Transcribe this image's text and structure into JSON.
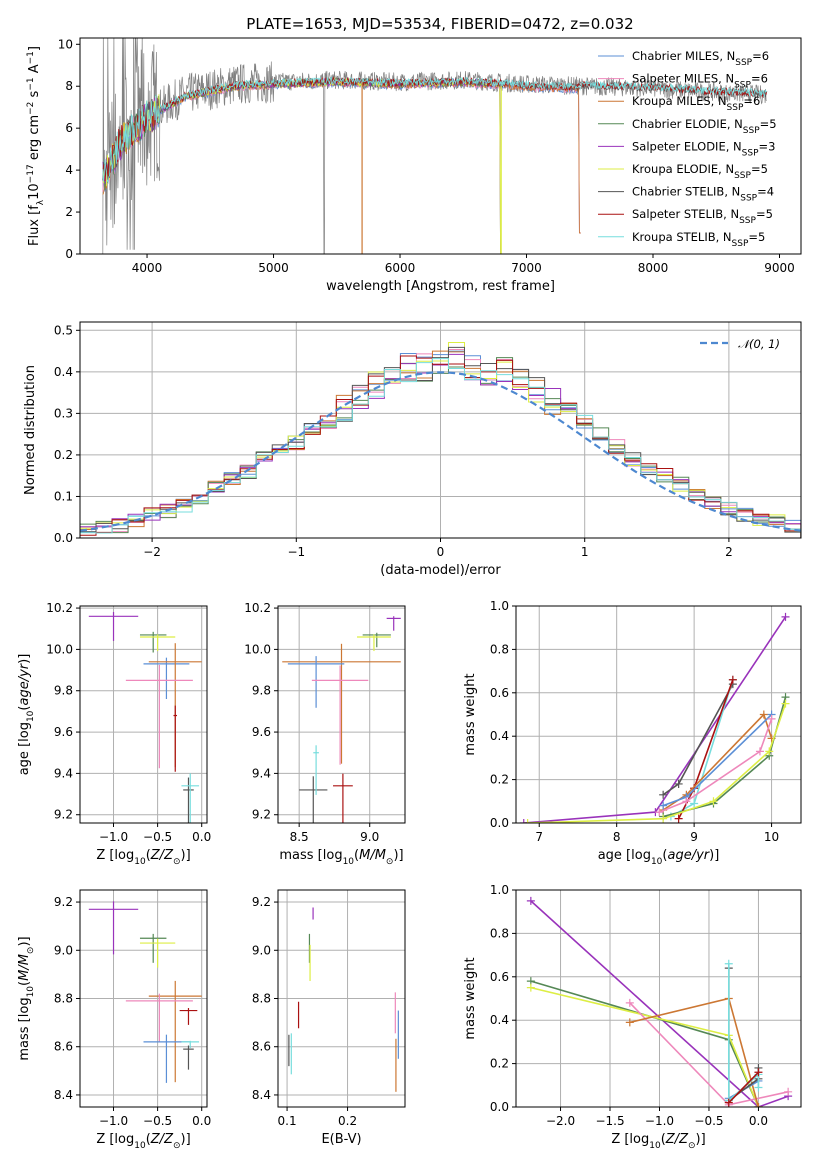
{
  "figure_title": "PLATE=1653, MJD=53534, FIBERID=0472, z=0.032",
  "colors": {
    "Chabrier MILES": "#5b8fd6",
    "Salpeter MILES": "#ee88bb",
    "Kroupa MILES": "#cc7733",
    "Chabrier ELODIE": "#558855",
    "Salpeter ELODIE": "#9933bb",
    "Kroupa ELODIE": "#ddee44",
    "Chabrier STELIB": "#555555",
    "Salpeter STELIB": "#aa1111",
    "Kroupa STELIB": "#77dddd",
    "observed": "#808080",
    "normal": "#4d88d0"
  },
  "chart_data": [
    {
      "id": "spectrum",
      "type": "line",
      "title": "PLATE=1653, MJD=53534, FIBERID=0472, z=0.032",
      "xlabel": "wavelength [Angstrom, rest frame]",
      "ylabel": "Flux [f_λ 10^-17 erg cm^-2 s^-1 A^-1]",
      "xlim": [
        3470,
        9170
      ],
      "ylim": [
        0,
        10.3
      ],
      "xticks": [
        4000,
        5000,
        6000,
        7000,
        8000,
        9000
      ],
      "yticks": [
        0,
        2,
        4,
        6,
        8,
        10
      ],
      "grid": false,
      "legend_position": "top-right",
      "legend": [
        {
          "label": "Chabrier MILES, N",
          "sub": "SSP",
          "tail": "=6"
        },
        {
          "label": "Salpeter MILES, N",
          "sub": "SSP",
          "tail": "=6"
        },
        {
          "label": "Kroupa MILES, N",
          "sub": "SSP",
          "tail": "=6"
        },
        {
          "label": "Chabrier ELODIE, N",
          "sub": "SSP",
          "tail": "=5"
        },
        {
          "label": "Salpeter ELODIE, N",
          "sub": "SSP",
          "tail": "=3"
        },
        {
          "label": "Kroupa ELODIE, N",
          "sub": "SSP",
          "tail": "=5"
        },
        {
          "label": "Chabrier STELIB, N",
          "sub": "SSP",
          "tail": "=4"
        },
        {
          "label": "Salpeter STELIB, N",
          "sub": "SSP",
          "tail": "=5"
        },
        {
          "label": "Kroupa STELIB, N",
          "sub": "SSP",
          "tail": "=5"
        }
      ],
      "observed_envelope": [
        [
          3650,
          3.0
        ],
        [
          3800,
          5.5
        ],
        [
          4000,
          6.6
        ],
        [
          4300,
          7.6
        ],
        [
          4700,
          8.1
        ],
        [
          5000,
          8.2
        ],
        [
          5500,
          8.3
        ],
        [
          6000,
          8.2
        ],
        [
          6500,
          8.3
        ],
        [
          7000,
          8.1
        ],
        [
          7500,
          8.0
        ],
        [
          8000,
          7.9
        ],
        [
          8500,
          7.7
        ],
        [
          8900,
          7.6
        ]
      ],
      "model_envelope": [
        [
          3650,
          3.6
        ],
        [
          3800,
          5.4
        ],
        [
          4000,
          6.5
        ],
        [
          4300,
          7.5
        ],
        [
          4700,
          8.0
        ],
        [
          5000,
          8.1
        ],
        [
          5500,
          8.2
        ],
        [
          6000,
          8.1
        ],
        [
          6500,
          8.2
        ],
        [
          7000,
          8.0
        ],
        [
          7430,
          7.9
        ]
      ]
    },
    {
      "id": "residuals",
      "type": "histogram",
      "xlabel": "(data-model)/error",
      "ylabel": "Normed distribution",
      "xlim": [
        -2.5,
        2.5
      ],
      "ylim": [
        0,
        0.52
      ],
      "xticks": [
        -2,
        -1,
        0,
        1,
        2
      ],
      "yticks": [
        0.0,
        0.1,
        0.2,
        0.3,
        0.4,
        0.5
      ],
      "grid": true,
      "legend_position": "top-right",
      "legend_label": "N(0,1)",
      "bin_width": 0.1111,
      "bin_start": -2.5,
      "bin_counts_approx": [
        0.02,
        0.025,
        0.03,
        0.04,
        0.055,
        0.065,
        0.08,
        0.1,
        0.12,
        0.14,
        0.16,
        0.19,
        0.21,
        0.23,
        0.26,
        0.28,
        0.31,
        0.34,
        0.37,
        0.38,
        0.41,
        0.41,
        0.42,
        0.44,
        0.41,
        0.39,
        0.4,
        0.38,
        0.36,
        0.33,
        0.31,
        0.28,
        0.25,
        0.22,
        0.19,
        0.17,
        0.15,
        0.13,
        0.1,
        0.085,
        0.07,
        0.055,
        0.045,
        0.04,
        0.03
      ]
    },
    {
      "id": "age_vs_Z",
      "type": "errorbar",
      "xlabel": "Z [log10(Z/Z_sun)]",
      "ylabel": "age [log10(age/yr)]",
      "xlim": [
        -1.38,
        0.06
      ],
      "ylim": [
        9.16,
        10.21
      ],
      "xticks": [
        -1.0,
        -0.5,
        0.0
      ],
      "yticks": [
        9.2,
        9.4,
        9.6,
        9.8,
        10.0,
        10.2
      ],
      "grid": true,
      "points": [
        {
          "s": "Salpeter ELODIE",
          "x": -1.0,
          "xe": 0.28,
          "y": 10.16,
          "ye": 0.14
        },
        {
          "s": "Chabrier ELODIE",
          "x": -0.55,
          "xe": 0.15,
          "y": 10.07,
          "ye": 0.1
        },
        {
          "s": "Kroupa ELODIE",
          "x": -0.5,
          "xe": 0.2,
          "y": 10.06,
          "ye": 0.08
        },
        {
          "s": "Chabrier MILES",
          "x": -0.4,
          "xe": 0.26,
          "y": 9.93,
          "ye": 0.2
        },
        {
          "s": "Kroupa MILES",
          "x": -0.3,
          "xe": 0.3,
          "y": 9.94,
          "ye": 0.6
        },
        {
          "s": "Salpeter MILES",
          "x": -0.48,
          "xe": 0.38,
          "y": 9.85,
          "ye": 0.5
        },
        {
          "s": "Salpeter STELIB",
          "x": -0.3,
          "xe": 0.02,
          "y": 9.68,
          "ye": 0.32
        },
        {
          "s": "Chabrier STELIB",
          "x": -0.15,
          "xe": 0.06,
          "y": 9.32,
          "ye": 0.4
        },
        {
          "s": "Kroupa STELIB",
          "x": -0.13,
          "xe": 0.1,
          "y": 9.34,
          "ye": 0.4
        }
      ]
    },
    {
      "id": "age_vs_mass",
      "type": "errorbar",
      "xlabel": "mass [log10(M/M_sun)]",
      "ylabel": "",
      "xlim": [
        8.35,
        9.25
      ],
      "ylim": [
        9.16,
        10.21
      ],
      "xticks": [
        8.5,
        9.0
      ],
      "yticks": [
        9.2,
        9.4,
        9.6,
        9.8,
        10.0,
        10.2
      ],
      "grid": true,
      "points": [
        {
          "s": "Salpeter ELODIE",
          "x": 9.17,
          "xe": 0.05,
          "y": 10.15,
          "ye": 0.07
        },
        {
          "s": "Chabrier ELODIE",
          "x": 9.05,
          "xe": 0.1,
          "y": 10.07,
          "ye": 0.07
        },
        {
          "s": "Kroupa ELODIE",
          "x": 9.03,
          "xe": 0.12,
          "y": 10.06,
          "ye": 0.08
        },
        {
          "s": "Kroupa MILES",
          "x": 8.8,
          "xe": 0.42,
          "y": 9.94,
          "ye": 0.58
        },
        {
          "s": "Chabrier MILES",
          "x": 8.62,
          "xe": 0.2,
          "y": 9.93,
          "ye": 0.25
        },
        {
          "s": "Salpeter MILES",
          "x": 8.79,
          "xe": 0.2,
          "y": 9.85,
          "ye": 0.48
        },
        {
          "s": "Salpeter STELIB",
          "x": 8.81,
          "xe": 0.07,
          "y": 9.34,
          "ye": 0.39
        },
        {
          "s": "Chabrier STELIB",
          "x": 8.6,
          "xe": 0.1,
          "y": 9.32,
          "ye": 0.44
        },
        {
          "s": "Kroupa STELIB",
          "x": 8.62,
          "xe": 0.02,
          "y": 9.5,
          "ye": 0.24
        }
      ]
    },
    {
      "id": "weight_vs_age",
      "type": "line",
      "xlabel": "age [log10(age/yr)]",
      "ylabel": "mass weight",
      "xlim": [
        6.7,
        10.38
      ],
      "ylim": [
        0,
        1.0
      ],
      "xticks": [
        7,
        8,
        9,
        10
      ],
      "yticks": [
        0.0,
        0.2,
        0.4,
        0.6,
        0.8,
        1.0
      ],
      "grid": true,
      "series": [
        {
          "s": "Salpeter ELODIE",
          "x": [
            6.8,
            8.5,
            10.18
          ],
          "y": [
            0.0,
            0.05,
            0.95
          ]
        },
        {
          "s": "Chabrier STELIB",
          "x": [
            8.6,
            8.8,
            9.5
          ],
          "y": [
            0.13,
            0.18,
            0.64
          ]
        },
        {
          "s": "Kroupa STELIB",
          "x": [
            8.7,
            9.0,
            9.5
          ],
          "y": [
            0.03,
            0.09,
            0.66
          ]
        },
        {
          "s": "Salpeter STELIB",
          "x": [
            8.8,
            9.0,
            9.5
          ],
          "y": [
            0.02,
            0.16,
            0.66
          ]
        },
        {
          "s": "Kroupa MILES",
          "x": [
            8.6,
            8.9,
            9.9,
            10.0
          ],
          "y": [
            0.06,
            0.13,
            0.5,
            0.39
          ]
        },
        {
          "s": "Chabrier MILES",
          "x": [
            8.6,
            8.9,
            10.0
          ],
          "y": [
            0.08,
            0.12,
            0.5
          ]
        },
        {
          "s": "Salpeter MILES",
          "x": [
            8.55,
            8.9,
            9.85,
            10.0
          ],
          "y": [
            0.05,
            0.1,
            0.33,
            0.48
          ]
        },
        {
          "s": "Chabrier ELODIE",
          "x": [
            8.6,
            9.25,
            9.97,
            10.18
          ],
          "y": [
            0.03,
            0.09,
            0.31,
            0.58
          ]
        },
        {
          "s": "Kroupa ELODIE",
          "x": [
            6.85,
            8.6,
            9.25,
            9.97,
            10.18
          ],
          "y": [
            0.0,
            0.02,
            0.1,
            0.33,
            0.55
          ]
        }
      ]
    },
    {
      "id": "mass_vs_Z",
      "type": "errorbar",
      "xlabel": "Z [log10(Z/Z_sun)]",
      "ylabel": "mass [log10(M/M_sun)]",
      "xlim": [
        -1.38,
        0.06
      ],
      "ylim": [
        8.35,
        9.25
      ],
      "xticks": [
        -1.0,
        -0.5,
        0.0
      ],
      "yticks": [
        8.4,
        8.6,
        8.8,
        9.0,
        9.2
      ],
      "grid": true,
      "points": [
        {
          "s": "Salpeter ELODIE",
          "x": -1.0,
          "xe": 0.28,
          "y": 9.17,
          "ye": 0.22
        },
        {
          "s": "Chabrier ELODIE",
          "x": -0.55,
          "xe": 0.15,
          "y": 9.05,
          "ye": 0.12
        },
        {
          "s": "Kroupa ELODIE",
          "x": -0.5,
          "xe": 0.2,
          "y": 9.03,
          "ye": 0.12
        },
        {
          "s": "Kroupa MILES",
          "x": -0.3,
          "xe": 0.3,
          "y": 8.81,
          "ye": 0.42
        },
        {
          "s": "Salpeter MILES",
          "x": -0.48,
          "xe": 0.38,
          "y": 8.79,
          "ye": 0.2
        },
        {
          "s": "Chabrier MILES",
          "x": -0.4,
          "xe": 0.26,
          "y": 8.62,
          "ye": 0.2
        },
        {
          "s": "Salpeter STELIB",
          "x": -0.15,
          "xe": 0.1,
          "y": 8.75,
          "ye": 0.07
        },
        {
          "s": "Chabrier STELIB",
          "x": -0.15,
          "xe": 0.06,
          "y": 8.59,
          "ye": 0.1
        },
        {
          "s": "Kroupa STELIB",
          "x": -0.13,
          "xe": 0.1,
          "y": 8.62,
          "ye": 0.03
        }
      ]
    },
    {
      "id": "mass_vs_EBV",
      "type": "errorbar",
      "xlabel": "E(B-V)",
      "ylabel": "",
      "xlim": [
        0.085,
        0.295
      ],
      "ylim": [
        8.35,
        9.25
      ],
      "xticks": [
        0.1,
        0.2
      ],
      "yticks": [
        8.4,
        8.6,
        8.8,
        9.0,
        9.2
      ],
      "grid": true,
      "points": [
        {
          "s": "Salpeter ELODIE",
          "x": 0.143,
          "y": 9.17,
          "ye": 0.05
        },
        {
          "s": "Chabrier ELODIE",
          "x": 0.137,
          "y": 9.05,
          "ye": 0.12
        },
        {
          "s": "Kroupa ELODIE",
          "x": 0.138,
          "y": 9.0,
          "ye": 0.15
        },
        {
          "s": "Salpeter STELIB",
          "x": 0.119,
          "y": 8.77,
          "ye": 0.11
        },
        {
          "s": "Chabrier STELIB",
          "x": 0.103,
          "y": 8.63,
          "ye": 0.13
        },
        {
          "s": "Kroupa STELIB",
          "x": 0.107,
          "y": 8.63,
          "ye": 0.17
        },
        {
          "s": "Salpeter MILES",
          "x": 0.279,
          "y": 8.8,
          "ye": 0.17
        },
        {
          "s": "Kroupa MILES",
          "x": 0.28,
          "y": 8.6,
          "ye": 0.22
        },
        {
          "s": "Chabrier MILES",
          "x": 0.284,
          "y": 8.72,
          "ye": 0.2
        }
      ]
    },
    {
      "id": "weight_vs_Z",
      "type": "line",
      "xlabel": "Z [log10(Z/Z_sun)]",
      "ylabel": "mass weight",
      "xlim": [
        -2.45,
        0.43
      ],
      "ylim": [
        0,
        1.0
      ],
      "xticks": [
        -2.0,
        -1.5,
        -1.0,
        -0.5,
        0.0
      ],
      "yticks": [
        0.0,
        0.2,
        0.4,
        0.6,
        0.8,
        1.0
      ],
      "grid": true,
      "series": [
        {
          "s": "Salpeter ELODIE",
          "x": [
            -2.3,
            0.0,
            0.3
          ],
          "y": [
            0.95,
            0.0,
            0.05
          ]
        },
        {
          "s": "Chabrier ELODIE",
          "x": [
            -2.3,
            -0.3,
            0.0
          ],
          "y": [
            0.58,
            0.31,
            0.0
          ]
        },
        {
          "s": "Kroupa ELODIE",
          "x": [
            -2.3,
            -0.3,
            0.0
          ],
          "y": [
            0.55,
            0.33,
            0.0
          ]
        },
        {
          "s": "Salpeter MILES",
          "x": [
            -1.3,
            -0.3,
            0.3
          ],
          "y": [
            0.48,
            0.01,
            0.07
          ]
        },
        {
          "s": "Kroupa MILES",
          "x": [
            -1.3,
            -0.3,
            0.0
          ],
          "y": [
            0.39,
            0.5,
            0.0
          ]
        },
        {
          "s": "Chabrier MILES",
          "x": [
            -0.3,
            0.0
          ],
          "y": [
            0.04,
            0.12
          ]
        },
        {
          "s": "Chabrier STELIB",
          "x": [
            -0.3,
            -0.3,
            0.0,
            0.0
          ],
          "y": [
            0.64,
            0.03,
            0.13,
            0.18
          ]
        },
        {
          "s": "Kroupa STELIB",
          "x": [
            -0.3,
            -0.3,
            0.0,
            0.0
          ],
          "y": [
            0.66,
            0.03,
            0.15,
            0.09
          ]
        },
        {
          "s": "Salpeter STELIB",
          "x": [
            -0.3,
            0.0
          ],
          "y": [
            0.02,
            0.16
          ]
        }
      ]
    }
  ]
}
